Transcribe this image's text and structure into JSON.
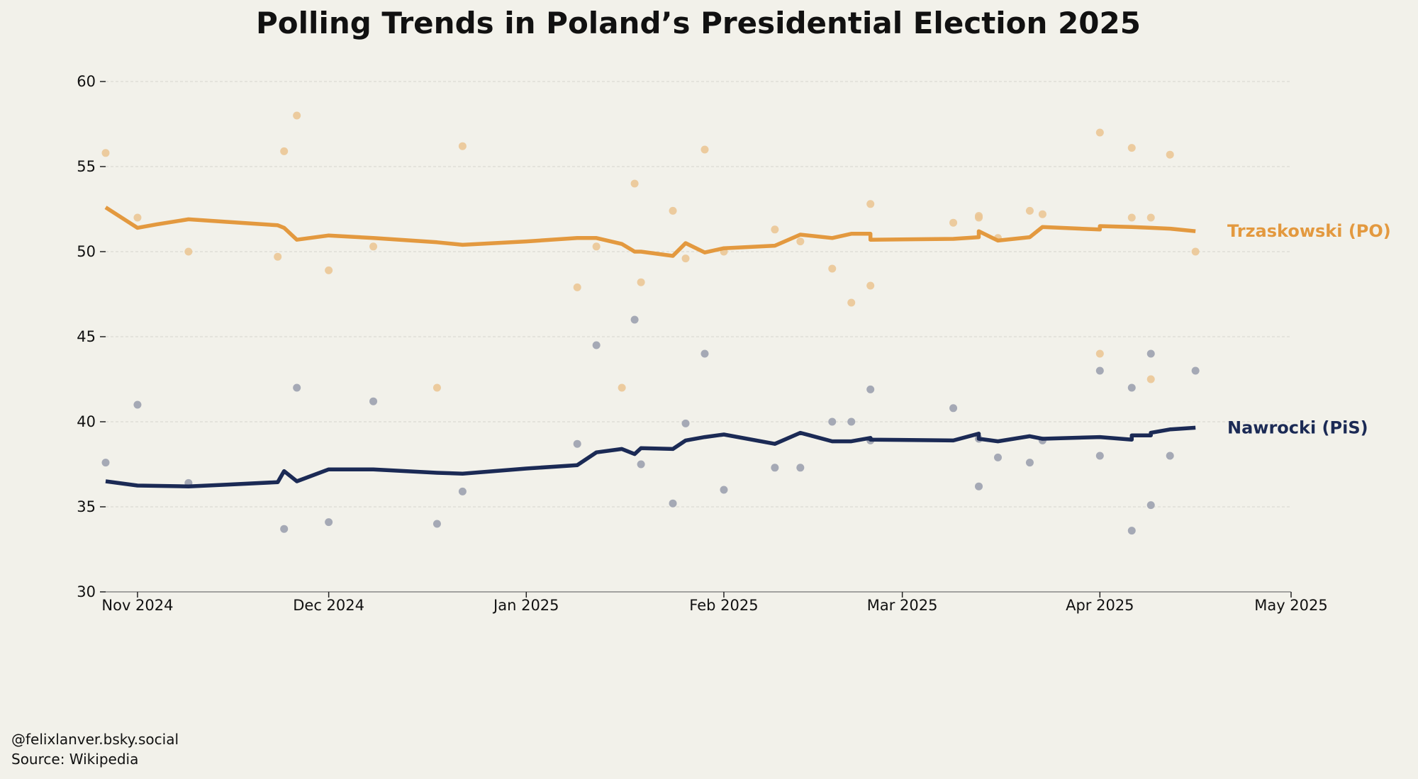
{
  "chart_data": {
    "type": "line",
    "title": "Polling Trends in Poland’s Presidential Election 2025",
    "xlabel": "",
    "ylabel": "",
    "xlim": [
      "2024-10-27",
      "2025-05-01"
    ],
    "ylim": [
      30,
      60
    ],
    "yticks": [
      30,
      35,
      40,
      45,
      50,
      55,
      60
    ],
    "xticks": [
      {
        "date": "2024-11-01",
        "label": "Nov 2024"
      },
      {
        "date": "2024-12-01",
        "label": "Dec 2024"
      },
      {
        "date": "2025-01-01",
        "label": "Jan 2025"
      },
      {
        "date": "2025-02-01",
        "label": "Feb 2025"
      },
      {
        "date": "2025-03-01",
        "label": "Mar 2025"
      },
      {
        "date": "2025-04-01",
        "label": "Apr 2025"
      },
      {
        "date": "2025-05-01",
        "label": "May 2025"
      }
    ],
    "grid": "horizontal dashed",
    "legend": "direct labels at right",
    "series": [
      {
        "name": "Trzaskowski (PO)",
        "color": "#E3993F",
        "point_color": "#EBC796",
        "polls": [
          [
            "2024-10-27",
            55.8
          ],
          [
            "2024-11-01",
            52.0
          ],
          [
            "2024-11-09",
            50.0
          ],
          [
            "2024-11-23",
            49.7
          ],
          [
            "2024-11-24",
            55.9
          ],
          [
            "2024-11-26",
            58.0
          ],
          [
            "2024-12-01",
            48.9
          ],
          [
            "2024-12-08",
            50.3
          ],
          [
            "2024-12-18",
            42.0
          ],
          [
            "2024-12-22",
            56.2
          ],
          [
            "2025-01-09",
            47.9
          ],
          [
            "2025-01-12",
            50.3
          ],
          [
            "2025-01-16",
            42.0
          ],
          [
            "2025-01-18",
            54.0
          ],
          [
            "2025-01-19",
            48.2
          ],
          [
            "2025-01-24",
            52.4
          ],
          [
            "2025-01-26",
            49.6
          ],
          [
            "2025-01-29",
            56.0
          ],
          [
            "2025-02-01",
            50.0
          ],
          [
            "2025-02-09",
            51.3
          ],
          [
            "2025-02-13",
            50.6
          ],
          [
            "2025-02-18",
            49.0
          ],
          [
            "2025-02-21",
            47.0
          ],
          [
            "2025-02-24",
            52.8
          ],
          [
            "2025-02-24",
            48.0
          ],
          [
            "2025-03-09",
            51.7
          ],
          [
            "2025-03-13",
            52.0
          ],
          [
            "2025-03-13",
            52.1
          ],
          [
            "2025-03-16",
            50.8
          ],
          [
            "2025-03-21",
            52.4
          ],
          [
            "2025-03-23",
            52.2
          ],
          [
            "2025-04-01",
            57.0
          ],
          [
            "2025-04-01",
            44.0
          ],
          [
            "2025-04-06",
            56.1
          ],
          [
            "2025-04-06",
            52.0
          ],
          [
            "2025-04-09",
            52.0
          ],
          [
            "2025-04-09",
            42.5
          ],
          [
            "2025-04-12",
            55.7
          ],
          [
            "2025-04-16",
            50.0
          ]
        ],
        "trend": [
          [
            "2024-10-27",
            52.6
          ],
          [
            "2024-11-01",
            51.4
          ],
          [
            "2024-11-04",
            51.6
          ],
          [
            "2024-11-09",
            51.9
          ],
          [
            "2024-11-15",
            51.75
          ],
          [
            "2024-11-23",
            51.55
          ],
          [
            "2024-11-24",
            51.4
          ],
          [
            "2024-11-26",
            50.7
          ],
          [
            "2024-12-01",
            50.95
          ],
          [
            "2024-12-08",
            50.8
          ],
          [
            "2024-12-18",
            50.55
          ],
          [
            "2024-12-22",
            50.4
          ],
          [
            "2025-01-01",
            50.6
          ],
          [
            "2025-01-09",
            50.8
          ],
          [
            "2025-01-12",
            50.8
          ],
          [
            "2025-01-16",
            50.45
          ],
          [
            "2025-01-18",
            50.0
          ],
          [
            "2025-01-19",
            50.0
          ],
          [
            "2025-01-24",
            49.75
          ],
          [
            "2025-01-26",
            50.5
          ],
          [
            "2025-01-29",
            49.95
          ],
          [
            "2025-02-01",
            50.2
          ],
          [
            "2025-02-09",
            50.35
          ],
          [
            "2025-02-13",
            51.0
          ],
          [
            "2025-02-18",
            50.8
          ],
          [
            "2025-02-21",
            51.05
          ],
          [
            "2025-02-24",
            51.05
          ],
          [
            "2025-02-24",
            50.7
          ],
          [
            "2025-03-09",
            50.75
          ],
          [
            "2025-03-13",
            50.85
          ],
          [
            "2025-03-13",
            51.2
          ],
          [
            "2025-03-16",
            50.65
          ],
          [
            "2025-03-21",
            50.85
          ],
          [
            "2025-03-23",
            51.45
          ],
          [
            "2025-04-01",
            51.3
          ],
          [
            "2025-04-01",
            51.5
          ],
          [
            "2025-04-06",
            51.45
          ],
          [
            "2025-04-09",
            51.4
          ],
          [
            "2025-04-12",
            51.35
          ],
          [
            "2025-04-16",
            51.2
          ]
        ]
      },
      {
        "name": "Nawrocki (PiS)",
        "color": "#1B2A55",
        "point_color": "#9CA1AF",
        "polls": [
          [
            "2024-10-27",
            37.6
          ],
          [
            "2024-11-01",
            41.0
          ],
          [
            "2024-11-09",
            36.4
          ],
          [
            "2024-11-24",
            33.7
          ],
          [
            "2024-11-26",
            42.0
          ],
          [
            "2024-12-01",
            34.1
          ],
          [
            "2024-12-08",
            41.2
          ],
          [
            "2024-12-18",
            34.0
          ],
          [
            "2024-12-22",
            35.9
          ],
          [
            "2025-01-09",
            38.7
          ],
          [
            "2025-01-12",
            44.5
          ],
          [
            "2025-01-18",
            46.0
          ],
          [
            "2025-01-19",
            37.5
          ],
          [
            "2025-01-24",
            35.2
          ],
          [
            "2025-01-26",
            39.9
          ],
          [
            "2025-01-29",
            44.0
          ],
          [
            "2025-02-01",
            36.0
          ],
          [
            "2025-02-09",
            37.3
          ],
          [
            "2025-02-13",
            37.3
          ],
          [
            "2025-02-18",
            40.0
          ],
          [
            "2025-02-21",
            40.0
          ],
          [
            "2025-02-24",
            41.9
          ],
          [
            "2025-02-24",
            38.9
          ],
          [
            "2025-03-09",
            40.8
          ],
          [
            "2025-03-13",
            36.2
          ],
          [
            "2025-03-13",
            39.0
          ],
          [
            "2025-03-16",
            37.9
          ],
          [
            "2025-03-21",
            37.6
          ],
          [
            "2025-03-23",
            38.9
          ],
          [
            "2025-04-01",
            43.0
          ],
          [
            "2025-04-01",
            38.0
          ],
          [
            "2025-04-06",
            42.0
          ],
          [
            "2025-04-06",
            33.6
          ],
          [
            "2025-04-09",
            44.0
          ],
          [
            "2025-04-09",
            35.1
          ],
          [
            "2025-04-12",
            38.0
          ],
          [
            "2025-04-16",
            43.0
          ]
        ],
        "trend": [
          [
            "2024-10-27",
            36.5
          ],
          [
            "2024-11-01",
            36.25
          ],
          [
            "2024-11-09",
            36.2
          ],
          [
            "2024-11-15",
            36.3
          ],
          [
            "2024-11-23",
            36.45
          ],
          [
            "2024-11-24",
            37.1
          ],
          [
            "2024-11-26",
            36.5
          ],
          [
            "2024-12-01",
            37.2
          ],
          [
            "2024-12-08",
            37.2
          ],
          [
            "2024-12-18",
            37.0
          ],
          [
            "2024-12-22",
            36.95
          ],
          [
            "2025-01-01",
            37.25
          ],
          [
            "2025-01-09",
            37.45
          ],
          [
            "2025-01-12",
            38.2
          ],
          [
            "2025-01-16",
            38.4
          ],
          [
            "2025-01-18",
            38.1
          ],
          [
            "2025-01-19",
            38.45
          ],
          [
            "2025-01-24",
            38.4
          ],
          [
            "2025-01-26",
            38.9
          ],
          [
            "2025-01-29",
            39.1
          ],
          [
            "2025-02-01",
            39.25
          ],
          [
            "2025-02-09",
            38.7
          ],
          [
            "2025-02-13",
            39.35
          ],
          [
            "2025-02-18",
            38.85
          ],
          [
            "2025-02-21",
            38.85
          ],
          [
            "2025-02-24",
            39.05
          ],
          [
            "2025-02-24",
            38.95
          ],
          [
            "2025-03-09",
            38.9
          ],
          [
            "2025-03-13",
            39.3
          ],
          [
            "2025-03-13",
            39.0
          ],
          [
            "2025-03-16",
            38.85
          ],
          [
            "2025-03-21",
            39.15
          ],
          [
            "2025-03-23",
            39.0
          ],
          [
            "2025-04-01",
            39.1
          ],
          [
            "2025-04-06",
            38.95
          ],
          [
            "2025-04-06",
            39.2
          ],
          [
            "2025-04-09",
            39.2
          ],
          [
            "2025-04-09",
            39.35
          ],
          [
            "2025-04-12",
            39.55
          ],
          [
            "2025-04-16",
            39.65
          ]
        ]
      }
    ]
  },
  "footer": {
    "credit": "@felixlanver.bsky.social",
    "source": "Source: Wikipedia"
  }
}
